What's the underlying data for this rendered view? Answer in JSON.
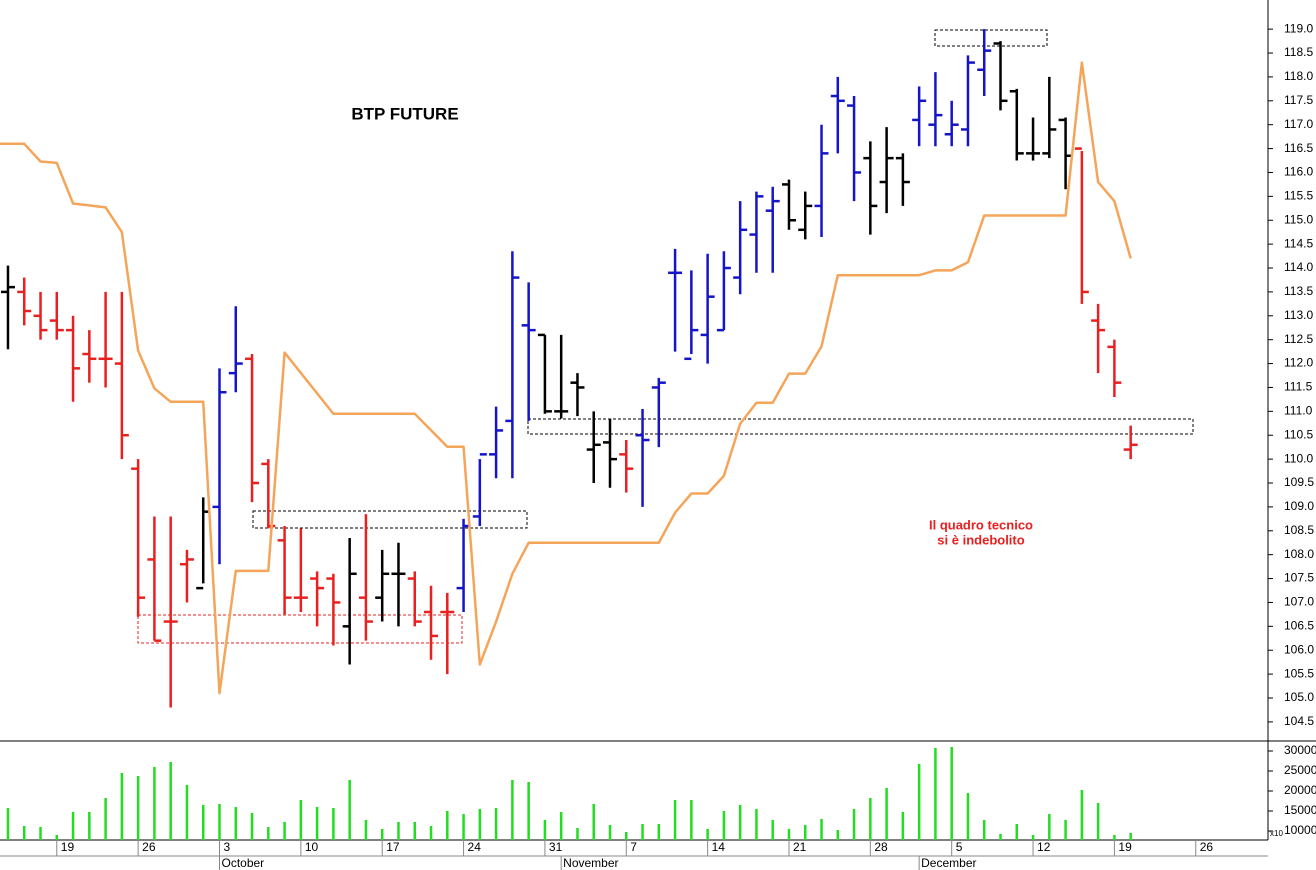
{
  "chart_data": [
    {
      "type": "ohlc",
      "title": "BTP FUTURE",
      "annotation": [
        "Il quadro tecnico",
        "si è indebolito"
      ],
      "xlim": [
        -0.49,
        77.44
      ],
      "ylim": [
        104.1,
        119.61
      ],
      "yticks": [
        104.5,
        {
          "value": 105,
          "label": "105.0"
        },
        105.5,
        {
          "value": 106,
          "label": "106.0"
        },
        106.5,
        {
          "value": 107,
          "label": "107.0"
        },
        107.5,
        {
          "value": 108,
          "label": "108.0"
        },
        108.5,
        {
          "value": 109,
          "label": "109.0"
        },
        109.5,
        {
          "value": 110,
          "label": "110.0"
        },
        110.5,
        {
          "value": 111,
          "label": "111.0"
        },
        111.5,
        {
          "value": 112,
          "label": "112.0"
        },
        112.5,
        {
          "value": 113,
          "label": "113.0"
        },
        113.5,
        {
          "value": 114,
          "label": "114.0"
        },
        114.5,
        {
          "value": 115,
          "label": "115.0"
        },
        115.5,
        {
          "value": 116,
          "label": "116.0"
        },
        116.5,
        {
          "value": 117,
          "label": "117.0"
        },
        117.5,
        {
          "value": 118,
          "label": "118.0"
        },
        118.5,
        {
          "value": 119,
          "label": "119.0"
        }
      ],
      "series": [
        {
          "type": "ohlc",
          "x": [
            0,
            1,
            2,
            3,
            4,
            5,
            6,
            7,
            8,
            9,
            10,
            11,
            12,
            13,
            14,
            15,
            16,
            17,
            18,
            19,
            20,
            21,
            22,
            23,
            24,
            25,
            26,
            27,
            28,
            29,
            30,
            31,
            32,
            33,
            34,
            35,
            36,
            37,
            38,
            39,
            40,
            41,
            42,
            43,
            44,
            45,
            46,
            47,
            48,
            49,
            50,
            51,
            52,
            53,
            54,
            55,
            56,
            57,
            58,
            59,
            60,
            61,
            62,
            63,
            64,
            65,
            66,
            67,
            68,
            69
          ],
          "open": [
            113.5,
            113.5,
            113.0,
            112.9,
            112.7,
            112.2,
            112.1,
            112.0,
            109.8,
            107.9,
            106.6,
            107.8,
            107.3,
            109.0,
            111.8,
            112.1,
            109.9,
            108.3,
            107.1,
            107.5,
            107.5,
            106.5,
            107.1,
            107.1,
            107.6,
            107.5,
            106.8,
            106.8,
            107.3,
            108.8,
            110.1,
            110.8,
            112.8,
            112.6,
            111.0,
            111.6,
            110.2,
            110.35,
            110.1,
            110.5,
            111.5,
            113.9,
            112.1,
            112.6,
            112.7,
            113.8,
            114.7,
            115.2,
            115.75,
            114.8,
            115.3,
            117.6,
            117.4,
            116.3,
            115.8,
            116.3,
            117.1,
            117.0,
            116.8,
            116.9,
            118.15,
            118.7,
            117.7,
            116.4,
            116.4,
            117.1,
            116.5,
            112.9,
            112.35,
            110.2
          ],
          "high": [
            114.05,
            113.8,
            113.5,
            113.5,
            113.0,
            112.7,
            113.5,
            113.5,
            110.0,
            108.8,
            108.8,
            108.1,
            109.2,
            111.9,
            113.2,
            112.2,
            110.0,
            108.6,
            108.55,
            107.65,
            107.6,
            108.35,
            108.85,
            108.1,
            108.25,
            107.65,
            107.35,
            107.2,
            108.75,
            110.0,
            111.1,
            114.35,
            113.7,
            112.6,
            112.6,
            111.8,
            111.0,
            110.85,
            110.4,
            111.05,
            111.7,
            114.4,
            113.95,
            114.3,
            114.35,
            115.4,
            115.6,
            115.7,
            115.85,
            115.6,
            117.0,
            118.0,
            117.6,
            116.65,
            116.95,
            116.4,
            117.8,
            118.1,
            117.5,
            118.45,
            119.0,
            118.75,
            117.75,
            117.15,
            118.0,
            117.15,
            116.45,
            113.25,
            112.5,
            110.7
          ],
          "low": [
            112.3,
            112.8,
            112.5,
            112.5,
            111.2,
            111.6,
            111.5,
            110.0,
            106.7,
            106.2,
            104.8,
            107.0,
            107.4,
            107.8,
            111.4,
            109.1,
            108.55,
            106.75,
            106.8,
            106.5,
            106.1,
            105.7,
            106.2,
            106.6,
            106.5,
            106.5,
            105.8,
            105.5,
            106.8,
            108.6,
            109.6,
            109.6,
            110.8,
            110.95,
            110.85,
            110.9,
            109.5,
            109.4,
            109.3,
            109.0,
            110.25,
            112.25,
            112.2,
            112.0,
            112.7,
            113.45,
            113.9,
            113.9,
            114.8,
            114.6,
            114.65,
            116.4,
            115.4,
            114.7,
            115.15,
            115.3,
            116.55,
            116.55,
            116.55,
            116.55,
            117.6,
            117.3,
            116.25,
            116.25,
            116.3,
            115.65,
            113.25,
            111.8,
            111.3,
            110.0
          ],
          "close": [
            113.6,
            113.1,
            112.7,
            112.7,
            111.9,
            112.1,
            112.1,
            110.5,
            107.1,
            106.2,
            106.6,
            107.9,
            108.9,
            111.4,
            112.0,
            109.5,
            108.6,
            107.1,
            107.1,
            107.3,
            107.0,
            107.6,
            106.6,
            107.6,
            107.6,
            106.6,
            106.3,
            106.8,
            108.6,
            110.1,
            110.6,
            113.8,
            112.7,
            111.0,
            111.0,
            111.5,
            110.3,
            110.0,
            109.8,
            110.4,
            111.6,
            113.9,
            112.7,
            113.4,
            114.0,
            114.8,
            115.5,
            115.4,
            115.0,
            115.3,
            116.4,
            117.5,
            116.0,
            115.3,
            116.3,
            115.8,
            117.5,
            117.2,
            117.0,
            118.3,
            118.55,
            117.5,
            116.4,
            116.4,
            116.9,
            116.35,
            113.5,
            112.7,
            111.6,
            110.3
          ],
          "colors": [
            "#000000",
            "#e82020",
            "#e82020",
            "#e82020",
            "#e82020",
            "#e82020",
            "#e82020",
            "#e82020",
            "#e82020",
            "#e82020",
            "#e82020",
            "#e82020",
            "#000000",
            "#1414c8",
            "#1414c8",
            "#e82020",
            "#e82020",
            "#e82020",
            "#e82020",
            "#e82020",
            "#e82020",
            "#000000",
            "#e82020",
            "#000000",
            "#000000",
            "#e82020",
            "#e82020",
            "#e82020",
            "#1414c8",
            "#1414c8",
            "#1414c8",
            "#1414c8",
            "#1414c8",
            "#000000",
            "#000000",
            "#000000",
            "#000000",
            "#000000",
            "#e82020",
            "#1414c8",
            "#1414c8",
            "#1414c8",
            "#1414c8",
            "#1414c8",
            "#1414c8",
            "#1414c8",
            "#1414c8",
            "#1414c8",
            "#000000",
            "#000000",
            "#1414c8",
            "#1414c8",
            "#1414c8",
            "#000000",
            "#000000",
            "#000000",
            "#1414c8",
            "#1414c8",
            "#1414c8",
            "#1414c8",
            "#1414c8",
            "#000000",
            "#000000",
            "#000000",
            "#000000",
            "#000000",
            "#e82020",
            "#e82020",
            "#e82020",
            "#e82020"
          ]
        },
        {
          "type": "line",
          "color": "#f5a55a",
          "x": [
            -0.5,
            1,
            2,
            3,
            4,
            6,
            7,
            8,
            9,
            10,
            12,
            13,
            14,
            16,
            17,
            20,
            25,
            27,
            28,
            29,
            30,
            31,
            32,
            40,
            41,
            42,
            43,
            44,
            45,
            46,
            47,
            48,
            49,
            50,
            51,
            56,
            57,
            58,
            59,
            60,
            65,
            66,
            67,
            68,
            69
          ],
          "values": [
            116.6,
            116.6,
            116.23,
            116.2,
            115.35,
            115.27,
            114.75,
            112.27,
            111.48,
            111.2,
            111.2,
            105.1,
            107.66,
            107.66,
            112.23,
            110.95,
            110.95,
            110.26,
            110.26,
            105.7,
            106.6,
            107.6,
            108.25,
            108.25,
            108.88,
            109.28,
            109.28,
            109.65,
            110.74,
            111.18,
            111.18,
            111.79,
            111.79,
            112.36,
            113.85,
            113.85,
            113.95,
            113.95,
            114.12,
            115.1,
            115.1,
            118.3,
            115.8,
            115.4,
            114.2
          ]
        }
      ]
    },
    {
      "type": "bar",
      "color": "#22dd22",
      "unit_label": "x10",
      "xlim": [
        -0.49,
        77.44
      ],
      "ylim": [
        7750,
        32500
      ],
      "yticks": [
        10000,
        15000,
        20000,
        25000,
        30000
      ],
      "x": [
        0,
        1,
        2,
        3,
        4,
        5,
        6,
        7,
        8,
        9,
        10,
        11,
        12,
        13,
        14,
        15,
        16,
        17,
        18,
        19,
        20,
        21,
        22,
        23,
        24,
        25,
        26,
        27,
        28,
        29,
        30,
        31,
        32,
        33,
        34,
        35,
        36,
        37,
        38,
        39,
        40,
        41,
        42,
        43,
        44,
        45,
        46,
        47,
        48,
        49,
        50,
        51,
        52,
        53,
        54,
        55,
        56,
        57,
        58,
        59,
        60,
        61,
        62,
        63,
        64,
        65,
        66,
        67,
        68,
        69
      ],
      "values": [
        15750,
        11250,
        11000,
        9000,
        14750,
        14750,
        18250,
        24500,
        23750,
        26000,
        27250,
        21500,
        16500,
        16750,
        16000,
        14500,
        11000,
        12250,
        17750,
        16000,
        15750,
        22750,
        12750,
        10500,
        12250,
        12250,
        11250,
        15000,
        14250,
        15500,
        15750,
        22750,
        22250,
        12750,
        14750,
        10750,
        16750,
        11500,
        9750,
        11750,
        11750,
        17750,
        17750,
        10500,
        15000,
        16500,
        15500,
        12750,
        10500,
        11500,
        13000,
        10250,
        15500,
        18250,
        20750,
        14750,
        26750,
        30750,
        31000,
        19500,
        12750,
        9250,
        11750,
        9000,
        14250,
        12750,
        20250,
        17000,
        9000,
        9500
      ],
      "xticks": [
        {
          "value": 3,
          "label": "19"
        },
        {
          "value": 8,
          "label": "26"
        },
        {
          "value": 13,
          "label": "3"
        },
        {
          "value": 18,
          "label": "10"
        },
        {
          "value": 23,
          "label": "17"
        },
        {
          "value": 28,
          "label": "24"
        },
        {
          "value": 33,
          "label": "31"
        },
        {
          "value": 38,
          "label": "7"
        },
        {
          "value": 43,
          "label": "14"
        },
        {
          "value": 48,
          "label": "21"
        },
        {
          "value": 53,
          "label": "28"
        },
        {
          "value": 58,
          "label": "5"
        },
        {
          "value": 63,
          "label": "12"
        },
        {
          "value": 68,
          "label": "19"
        },
        {
          "value": 73,
          "label": "26"
        }
      ],
      "month_ticks": [
        {
          "value": 13,
          "label": "October"
        },
        {
          "value": 34,
          "label": "November"
        },
        {
          "value": 56,
          "label": "December"
        }
      ]
    }
  ]
}
